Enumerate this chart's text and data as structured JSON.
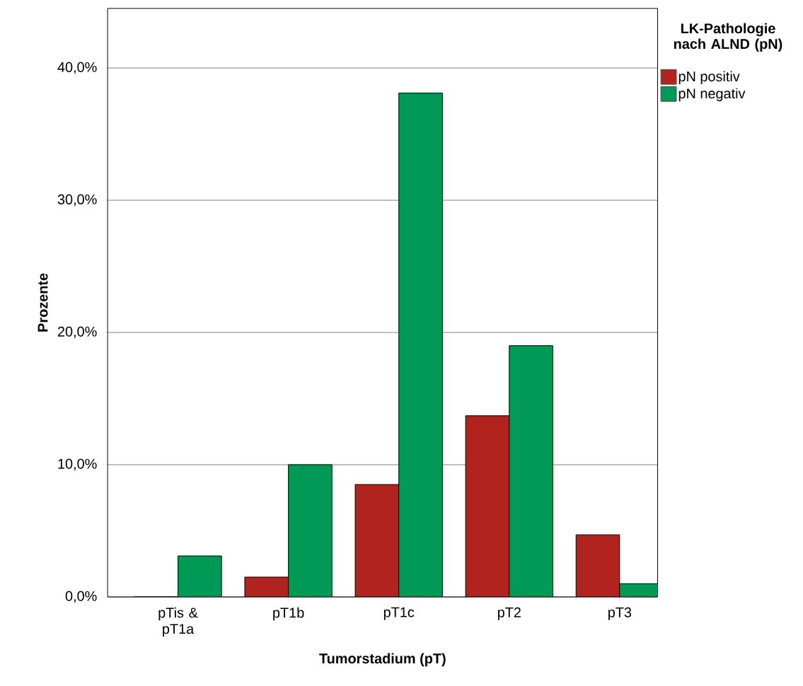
{
  "chart_data": {
    "type": "bar",
    "xlabel": "Tumorstadium (pT)",
    "ylabel": "Prozente",
    "legend_title": "LK-Pathologie nach ALND (pN)",
    "categories": [
      "pTis & pT1a",
      "pT1b",
      "pT1c",
      "pT2",
      "pT3"
    ],
    "series": [
      {
        "name": "pN positiv",
        "color": "#b0231f",
        "values": [
          0,
          1.5,
          8.5,
          13.7,
          4.7
        ]
      },
      {
        "name": "pN negativ",
        "color": "#009955",
        "values": [
          3.1,
          10.0,
          38.1,
          19.0,
          1.0
        ]
      }
    ],
    "ylim": [
      0,
      44.5
    ],
    "yticks": [
      {
        "value": 0,
        "label": "0,0%"
      },
      {
        "value": 10,
        "label": "10,0%"
      },
      {
        "value": 20,
        "label": "20,0%"
      },
      {
        "value": 30,
        "label": "30,0%"
      },
      {
        "value": 40,
        "label": "40,0%"
      }
    ],
    "grid": "y",
    "legend": "top right"
  }
}
